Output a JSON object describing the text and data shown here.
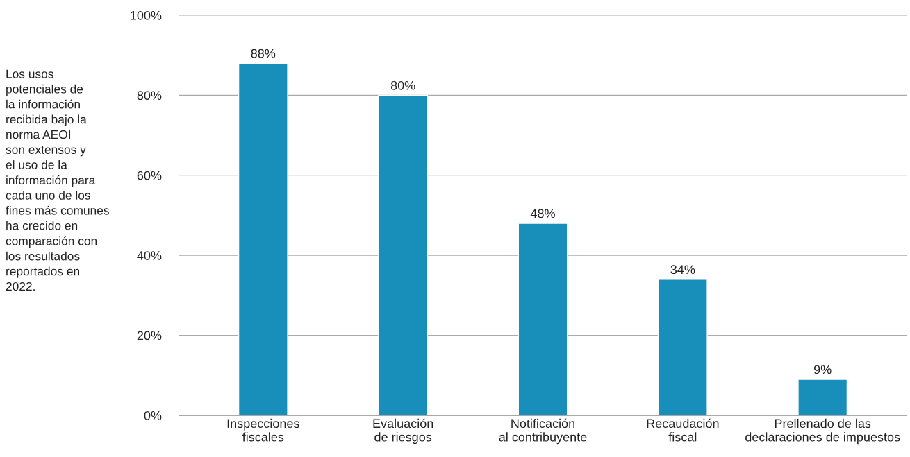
{
  "chart_data": {
    "type": "bar",
    "categories": [
      "Inspecciones\nfiscales",
      "Evaluación\nde riesgos",
      "Notificación\nal contribuyente",
      "Recaudación\nfiscal",
      "Prellenado de las\ndeclaraciones de impuestos"
    ],
    "values": [
      88,
      80,
      48,
      34,
      9
    ],
    "value_labels": [
      "88%",
      "80%",
      "48%",
      "34%",
      "9%"
    ],
    "color": "#188fba",
    "ylim": [
      0,
      100
    ],
    "yticks": [
      {
        "value": 0,
        "label": "0%"
      },
      {
        "value": 20,
        "label": "20%"
      },
      {
        "value": 40,
        "label": "40%"
      },
      {
        "value": 60,
        "label": "60%"
      },
      {
        "value": 80,
        "label": "80%"
      },
      {
        "value": 100,
        "label": "100%"
      }
    ],
    "grid": "y",
    "annotations": [
      "Los usos\npotenciales de\nla información\nrecibida bajo la\nnorma AEOI\nson extensos y\nel uso de la\ninformación para\ncada uno de los\nfines más comunes\nha crecido en\ncomparación con\nlos resultados\nreportados en\n2022."
    ]
  }
}
